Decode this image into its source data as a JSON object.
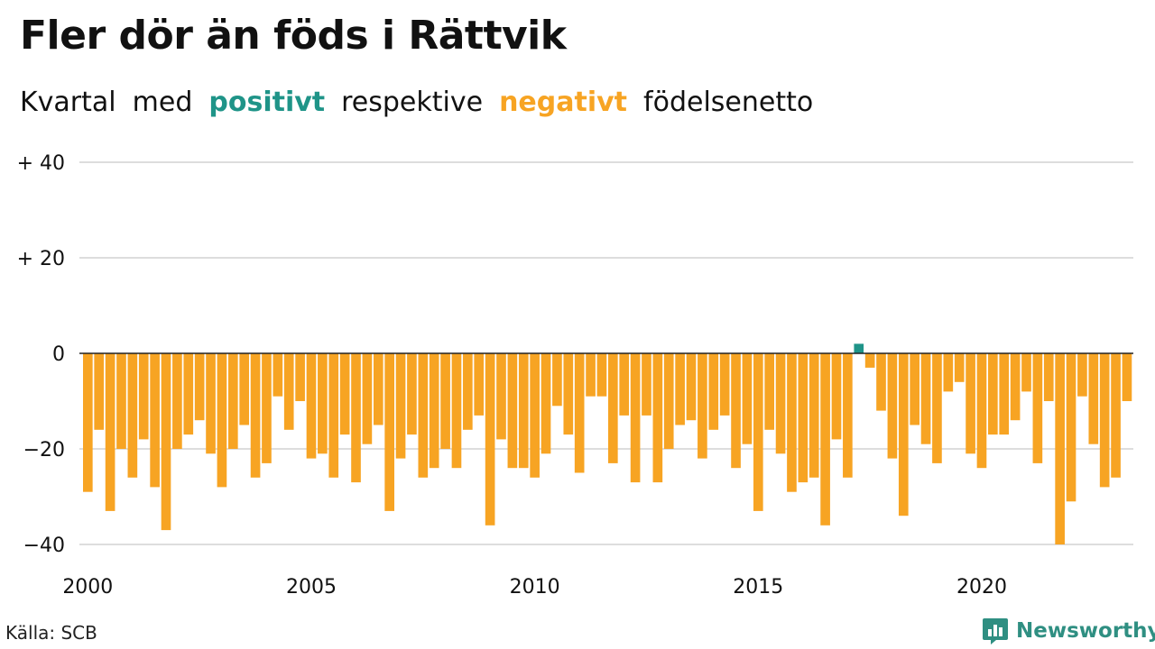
{
  "title": "Fler dör än föds i Rättvik",
  "subtitle": {
    "part1": "Kvartal",
    "part2": "med",
    "positive": "positivt",
    "part3": "respektive",
    "negative": "negativt",
    "part4": "födelsenetto"
  },
  "colors": {
    "positive": "#1f9488",
    "negative": "#f7a423",
    "grid": "#dddddd",
    "zero_line": "#222222"
  },
  "source": "Källa: SCB",
  "brand": {
    "name": "Newsworthy",
    "icon": "newsworthy-logo-icon"
  },
  "chart_data": {
    "type": "bar",
    "title": "Fler dör än föds i Rättvik",
    "subtitle": "Kvartal med positivt respektive negativt födelsenetto",
    "xlabel": "",
    "ylabel": "",
    "ylim": [
      -40,
      40
    ],
    "yticks": [
      {
        "value": 40,
        "label": "+ 40"
      },
      {
        "value": 20,
        "label": "+ 20"
      },
      {
        "value": 0,
        "label": "0"
      },
      {
        "value": -20,
        "label": "−20"
      },
      {
        "value": -40,
        "label": "−40"
      }
    ],
    "xticks": [
      {
        "year": 2000,
        "label": "2000"
      },
      {
        "year": 2005,
        "label": "2005"
      },
      {
        "year": 2010,
        "label": "2010"
      },
      {
        "year": 2015,
        "label": "2015"
      },
      {
        "year": 2020,
        "label": "2020"
      }
    ],
    "grid": true,
    "first_quarter": "2000 Q1",
    "last_quarter": "2023 Q2",
    "values": [
      -29,
      -16,
      -33,
      -20,
      -26,
      -18,
      -28,
      -37,
      -20,
      -17,
      -14,
      -21,
      -28,
      -20,
      -15,
      -26,
      -23,
      -9,
      -16,
      -10,
      -22,
      -21,
      -26,
      -17,
      -27,
      -19,
      -15,
      -33,
      -22,
      -17,
      -26,
      -24,
      -20,
      -24,
      -16,
      -13,
      -36,
      -18,
      -24,
      -24,
      -26,
      -21,
      -11,
      -17,
      -25,
      -9,
      -9,
      -23,
      -13,
      -27,
      -13,
      -27,
      -20,
      -15,
      -14,
      -22,
      -16,
      -13,
      -24,
      -19,
      -33,
      -16,
      -21,
      -29,
      -27,
      -26,
      -36,
      -18,
      -26,
      2,
      -3,
      -12,
      -22,
      -34,
      -15,
      -19,
      -23,
      -8,
      -6,
      -21,
      -24,
      -17,
      -17,
      -14,
      -8,
      -23,
      -10,
      -40,
      -31,
      -9,
      -19,
      -28,
      -26,
      -10
    ]
  }
}
